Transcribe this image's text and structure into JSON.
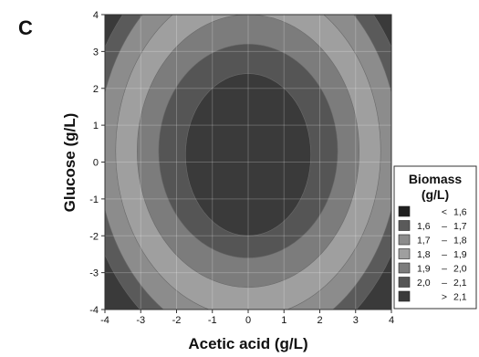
{
  "panel_label": "C",
  "chart_data": {
    "type": "heatmap",
    "subtype": "contour",
    "xlabel": "Acetic acid (g/L)",
    "ylabel": "Glucose (g/L)",
    "xlim": [
      -4,
      4
    ],
    "ylim": [
      -4,
      4
    ],
    "x_ticks": [
      "-4",
      "-3",
      "-2",
      "-1",
      "0",
      "1",
      "2",
      "3",
      "4"
    ],
    "y_ticks": [
      "4",
      "3",
      "2",
      "1",
      "0",
      "-1",
      "-2",
      "-3",
      "-4"
    ],
    "grid": true,
    "legend_position": "right",
    "legend": {
      "title_line1": "Biomass",
      "title_line2": "(g/L)",
      "entries": [
        {
          "lo": "",
          "op": "<",
          "hi": "1,6",
          "color": "#202020"
        },
        {
          "lo": "1,6",
          "op": "–",
          "hi": "1,7",
          "color": "#5a5a5a"
        },
        {
          "lo": "1,7",
          "op": "–",
          "hi": "1,8",
          "color": "#8c8c8c"
        },
        {
          "lo": "1,8",
          "op": "–",
          "hi": "1,9",
          "color": "#9f9f9f"
        },
        {
          "lo": "1,9",
          "op": "–",
          "hi": "2,0",
          "color": "#7c7c7c"
        },
        {
          "lo": "2,0",
          "op": "–",
          "hi": "2,1",
          "color": "#555555"
        },
        {
          "lo": "",
          "op": ">",
          "hi": "2,1",
          "color": "#3a3a3a"
        }
      ]
    },
    "contours": [
      {
        "level": "1,6 – 1,7",
        "center": [
          0,
          0.3
        ],
        "rx": 4.6,
        "ry": 5.7
      },
      {
        "level": "1,7 – 1,8",
        "center": [
          0,
          0.3
        ],
        "rx": 4.2,
        "ry": 5.2
      },
      {
        "level": "1,8 – 1,9",
        "center": [
          0,
          0.3
        ],
        "rx": 3.7,
        "ry": 4.5
      },
      {
        "level": "1,9 – 2,0",
        "center": [
          0,
          0.3
        ],
        "rx": 3.1,
        "ry": 3.7
      },
      {
        "level": "2,0 – 2,1",
        "center": [
          0,
          0.3
        ],
        "rx": 2.5,
        "ry": 2.9
      },
      {
        "level": "> 2,1",
        "center": [
          0,
          0.2
        ],
        "rx": 1.75,
        "ry": 2.2
      }
    ]
  }
}
